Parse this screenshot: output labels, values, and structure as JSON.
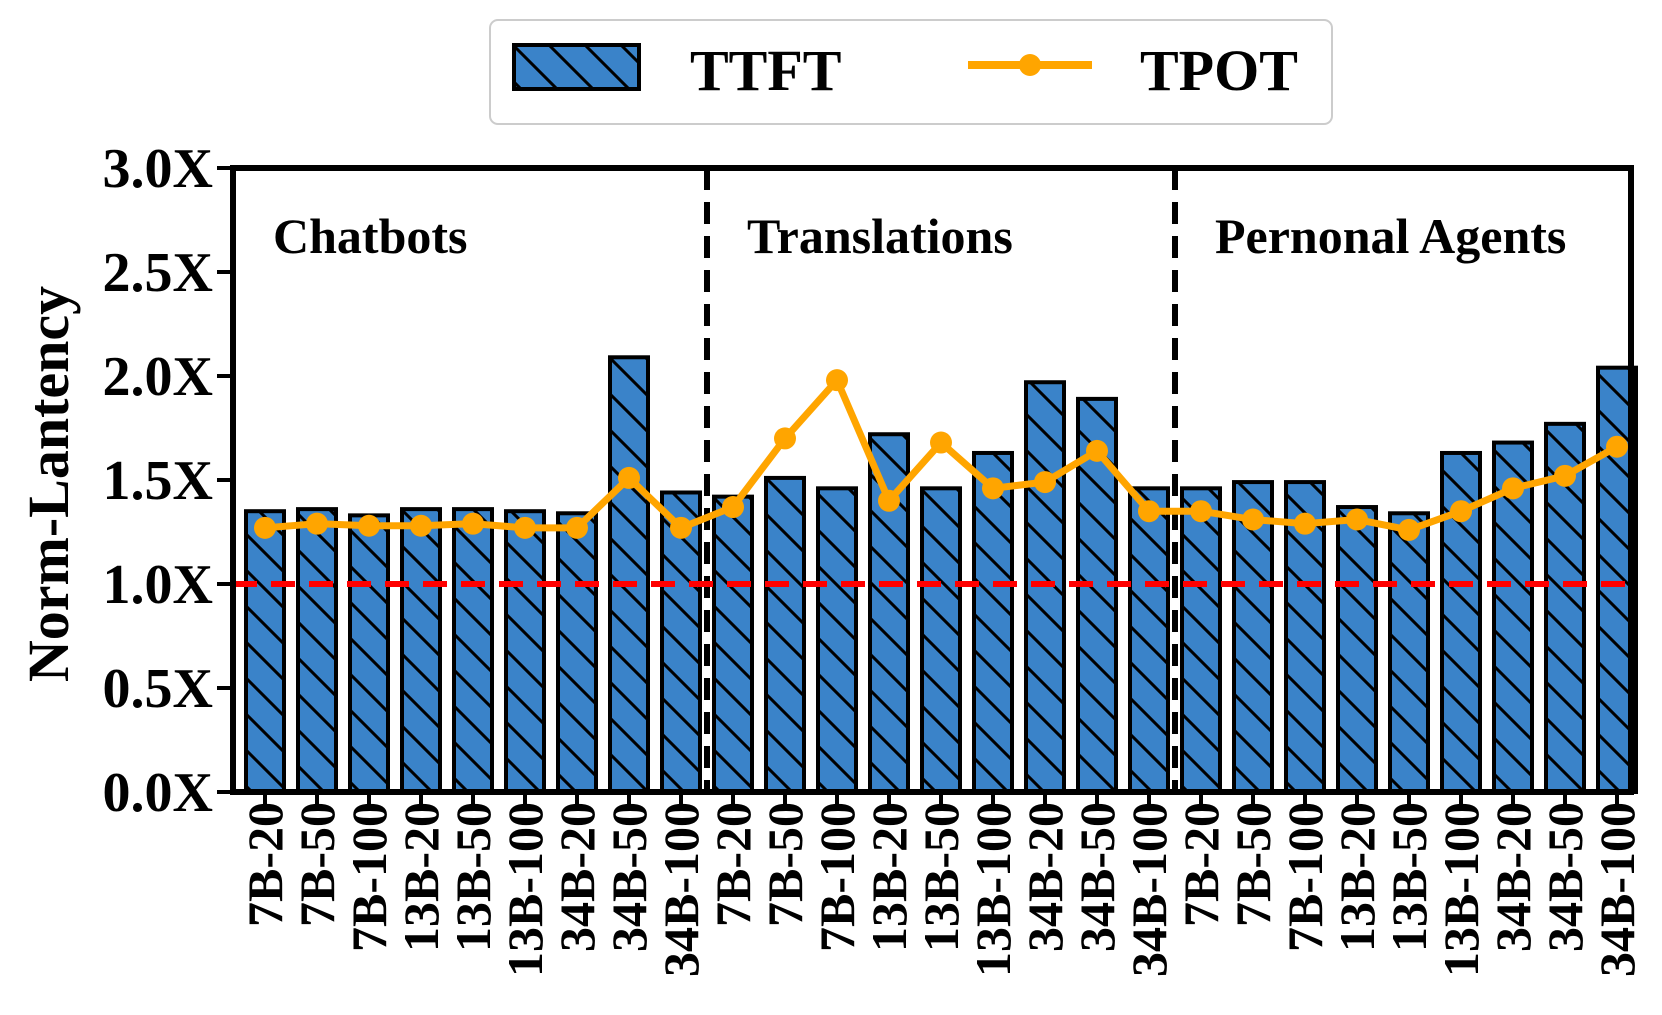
{
  "chart_data": {
    "type": "bar",
    "ylabel": "Norm-Lantency",
    "xlabel": "",
    "ylim": [
      0,
      3.0
    ],
    "yticks": [
      0.0,
      0.5,
      1.0,
      1.5,
      2.0,
      2.5,
      3.0
    ],
    "ytick_labels": [
      "0.0X",
      "0.5X",
      "1.0X",
      "1.5X",
      "2.0X",
      "2.5X",
      "3.0X"
    ],
    "categories": [
      "7B-20",
      "7B-50",
      "7B-100",
      "13B-20",
      "13B-50",
      "13B-100",
      "34B-20",
      "34B-50",
      "34B-100",
      "7B-20",
      "7B-50",
      "7B-100",
      "13B-20",
      "13B-50",
      "13B-100",
      "34B-20",
      "34B-50",
      "34B-100",
      "7B-20",
      "7B-50",
      "7B-100",
      "13B-20",
      "13B-50",
      "13B-100",
      "34B-20",
      "34B-50",
      "34B-100"
    ],
    "groups": [
      {
        "label": "Chatbots",
        "start": 0,
        "end": 8
      },
      {
        "label": "Translations",
        "start": 9,
        "end": 17
      },
      {
        "label": "Pernonal Agents",
        "start": 18,
        "end": 26
      }
    ],
    "series": [
      {
        "name": "TTFT",
        "type": "bar",
        "color": "#3a83c9",
        "hatch": "diagonal",
        "values": [
          1.35,
          1.36,
          1.33,
          1.36,
          1.36,
          1.35,
          1.34,
          2.09,
          1.44,
          1.42,
          1.51,
          1.46,
          1.72,
          1.46,
          1.63,
          1.97,
          1.89,
          1.46,
          1.46,
          1.49,
          1.49,
          1.37,
          1.34,
          1.63,
          1.68,
          1.77,
          2.04
        ]
      },
      {
        "name": "TPOT",
        "type": "line",
        "color": "#ffa500",
        "marker": "circle",
        "values": [
          1.27,
          1.29,
          1.28,
          1.28,
          1.29,
          1.27,
          1.27,
          1.51,
          1.27,
          1.37,
          1.7,
          1.98,
          1.4,
          1.68,
          1.46,
          1.49,
          1.64,
          1.35,
          1.35,
          1.31,
          1.29,
          1.31,
          1.26,
          1.35,
          1.46,
          1.52,
          1.66
        ]
      }
    ],
    "reference_line": {
      "value": 1.0,
      "color": "#ff0000",
      "style": "dashed"
    },
    "separator_style": "dashed",
    "legend": {
      "position": "top-center",
      "entries": [
        "TTFT",
        "TPOT"
      ]
    }
  }
}
